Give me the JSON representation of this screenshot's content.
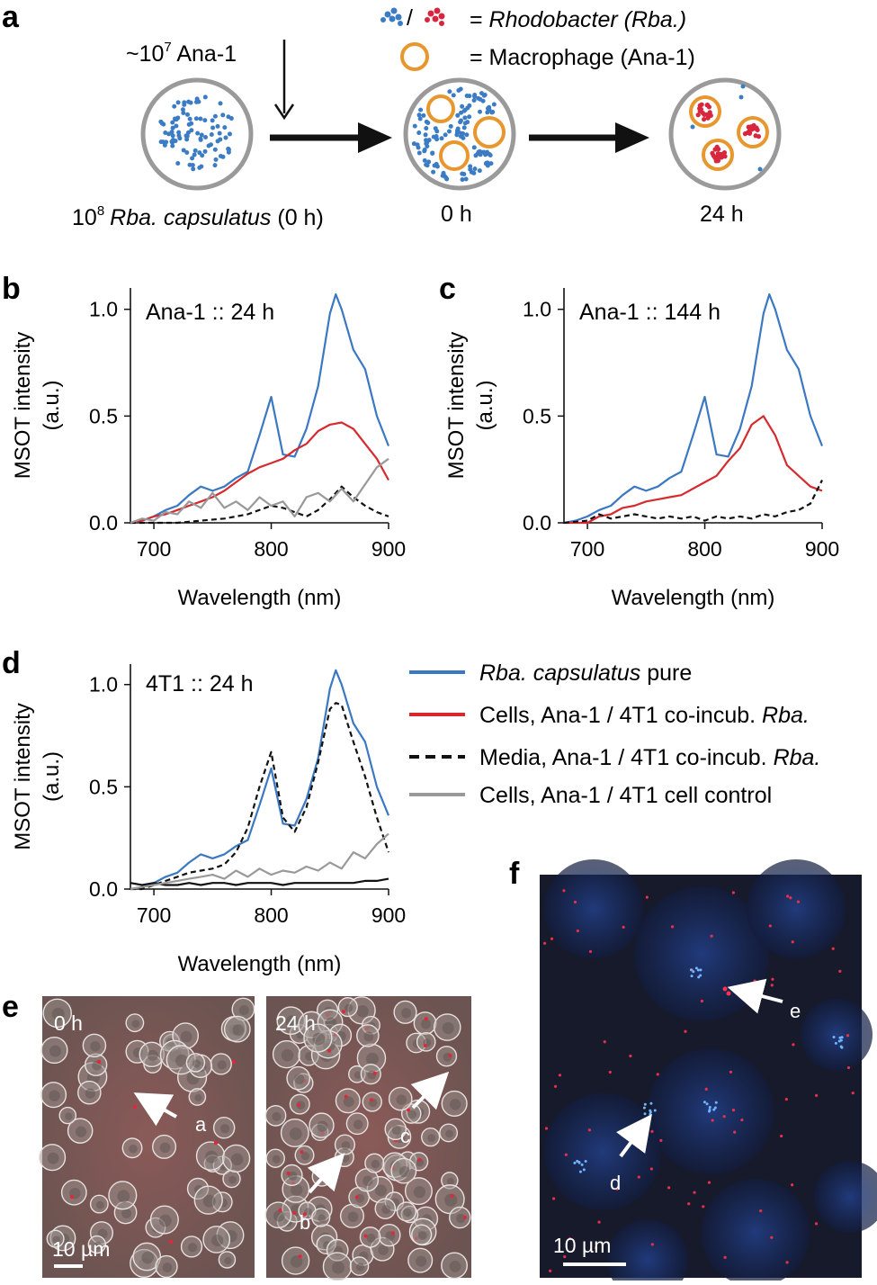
{
  "panels": {
    "a": "a",
    "b": "b",
    "c": "c",
    "d": "d",
    "e": "e",
    "f": "f"
  },
  "schematic": {
    "seed_label_prefix": "~10",
    "seed_label_exp": "7",
    "seed_label_suffix": " Ana-1",
    "dish1_label_prefix": "10",
    "dish1_label_exp": "8",
    "dish1_label_species": "Rba. capsulatus",
    "dish1_label_suffix": " (0 h)",
    "dish2_label": "0 h",
    "dish3_label": "24 h",
    "legend_bacteria_sep": "/",
    "legend_bacteria_eq": "= ",
    "legend_bacteria_name": "Rhodobacter (Rba.)",
    "legend_macrophage": "= Macrophage (Ana-1)",
    "colors": {
      "bacteria_blue": "#3b7cc4",
      "bacteria_red": "#d7263d",
      "macrophage": "#e8962e",
      "dish": "#9a9a9a"
    }
  },
  "legend": {
    "pure_species": "Rba. capsulatus",
    "pure_suffix": " pure",
    "cells_prefix": "Cells, Ana-1 / 4T1 co-incub. ",
    "cells_species": "Rba.",
    "media_prefix": "Media, Ana-1 / 4T1 co-incub. ",
    "media_species": "Rba.",
    "control": "Cells, Ana-1 / 4T1 cell control"
  },
  "chart_data": [
    {
      "type": "line",
      "panel": "b",
      "title": "Ana-1 :: 24 h",
      "xlabel": "Wavelength (nm)",
      "ylabel": [
        "MSOT intensity",
        "(a.u.)"
      ],
      "xlim": [
        680,
        900
      ],
      "ylim": [
        0,
        1.1
      ],
      "xticks": [
        "700",
        "800",
        "900"
      ],
      "yticks": [
        "0.0",
        "0.5",
        "1.0"
      ],
      "series": [
        {
          "name": "Rba. capsulatus pure",
          "color": "#3b78c2",
          "dash": false,
          "x": [
            680,
            690,
            700,
            710,
            720,
            730,
            740,
            750,
            760,
            770,
            780,
            790,
            800,
            810,
            820,
            830,
            840,
            850,
            855,
            860,
            870,
            880,
            890,
            900
          ],
          "y": [
            0.0,
            0.01,
            0.03,
            0.06,
            0.08,
            0.13,
            0.17,
            0.15,
            0.17,
            0.21,
            0.24,
            0.41,
            0.59,
            0.32,
            0.31,
            0.44,
            0.64,
            0.98,
            1.07,
            1.0,
            0.81,
            0.72,
            0.5,
            0.36
          ]
        },
        {
          "name": "Cells, Ana-1 / 4T1 co-incub. Rba.",
          "color": "#d62a2e",
          "dash": false,
          "x": [
            680,
            690,
            700,
            710,
            720,
            730,
            740,
            750,
            760,
            770,
            780,
            790,
            800,
            810,
            820,
            830,
            840,
            850,
            860,
            870,
            880,
            890,
            900
          ],
          "y": [
            0.0,
            0.01,
            0.03,
            0.04,
            0.06,
            0.08,
            0.1,
            0.12,
            0.15,
            0.19,
            0.23,
            0.26,
            0.28,
            0.3,
            0.34,
            0.37,
            0.43,
            0.46,
            0.47,
            0.44,
            0.37,
            0.3,
            0.2
          ]
        },
        {
          "name": "Media, Ana-1 / 4T1 co-incub. Rba.",
          "color": "#111111",
          "dash": true,
          "x": [
            680,
            700,
            720,
            740,
            760,
            780,
            800,
            810,
            820,
            830,
            840,
            850,
            860,
            870,
            880,
            890,
            900
          ],
          "y": [
            0.0,
            0.0,
            0.0,
            0.01,
            0.02,
            0.04,
            0.08,
            0.07,
            0.05,
            0.03,
            0.06,
            0.11,
            0.17,
            0.12,
            0.08,
            0.05,
            0.03
          ]
        },
        {
          "name": "Cells, Ana-1 / 4T1 cell control",
          "color": "#999999",
          "dash": false,
          "x": [
            680,
            690,
            700,
            710,
            720,
            730,
            740,
            750,
            760,
            770,
            780,
            790,
            800,
            810,
            820,
            830,
            840,
            850,
            860,
            870,
            880,
            890,
            900
          ],
          "y": [
            0.0,
            0.02,
            0.01,
            0.05,
            0.04,
            0.1,
            0.07,
            0.14,
            0.07,
            0.1,
            0.06,
            0.12,
            0.08,
            0.1,
            0.03,
            0.12,
            0.14,
            0.1,
            0.16,
            0.1,
            0.18,
            0.26,
            0.3
          ]
        }
      ]
    },
    {
      "type": "line",
      "panel": "c",
      "title": "Ana-1 :: 144 h",
      "xlabel": "Wavelength (nm)",
      "ylabel": [
        "MSOT intensity",
        "(a.u.)"
      ],
      "xlim": [
        680,
        900
      ],
      "ylim": [
        0,
        1.1
      ],
      "xticks": [
        "700",
        "800",
        "900"
      ],
      "yticks": [
        "0.0",
        "0.5",
        "1.0"
      ],
      "series": [
        {
          "name": "Rba. capsulatus pure",
          "color": "#3b78c2",
          "dash": false,
          "x": [
            680,
            690,
            700,
            710,
            720,
            730,
            740,
            750,
            760,
            770,
            780,
            790,
            800,
            810,
            820,
            830,
            840,
            850,
            855,
            860,
            870,
            880,
            890,
            900
          ],
          "y": [
            0.0,
            0.01,
            0.03,
            0.06,
            0.08,
            0.13,
            0.17,
            0.15,
            0.17,
            0.21,
            0.24,
            0.41,
            0.59,
            0.32,
            0.31,
            0.44,
            0.64,
            0.98,
            1.07,
            1.0,
            0.81,
            0.72,
            0.5,
            0.36
          ]
        },
        {
          "name": "Cells, Ana-1 / 4T1 co-incub. Rba.",
          "color": "#d62a2e",
          "dash": false,
          "x": [
            680,
            700,
            710,
            720,
            730,
            740,
            750,
            760,
            770,
            780,
            790,
            800,
            810,
            820,
            830,
            840,
            850,
            860,
            870,
            880,
            890,
            900
          ],
          "y": [
            0.0,
            0.0,
            0.03,
            0.04,
            0.07,
            0.08,
            0.1,
            0.11,
            0.12,
            0.13,
            0.16,
            0.19,
            0.22,
            0.29,
            0.35,
            0.46,
            0.5,
            0.41,
            0.27,
            0.22,
            0.17,
            0.15
          ]
        },
        {
          "name": "Media, Ana-1 / 4T1 co-incub. Rba.",
          "color": "#111111",
          "dash": true,
          "x": [
            680,
            700,
            710,
            720,
            730,
            740,
            750,
            760,
            770,
            780,
            790,
            800,
            810,
            820,
            830,
            840,
            850,
            860,
            870,
            880,
            890,
            900
          ],
          "y": [
            0.0,
            0.01,
            0.04,
            0.02,
            0.03,
            0.04,
            0.03,
            0.02,
            0.03,
            0.02,
            0.03,
            0.01,
            0.03,
            0.02,
            0.03,
            0.02,
            0.04,
            0.03,
            0.05,
            0.06,
            0.09,
            0.2
          ]
        }
      ]
    },
    {
      "type": "line",
      "panel": "d",
      "title": "4T1 :: 24 h",
      "xlabel": "Wavelength (nm)",
      "ylabel": [
        "MSOT intensity",
        "(a.u.)"
      ],
      "xlim": [
        680,
        900
      ],
      "ylim": [
        0,
        1.1
      ],
      "xticks": [
        "700",
        "800",
        "900"
      ],
      "yticks": [
        "0.0",
        "0.5",
        "1.0"
      ],
      "series": [
        {
          "name": "Rba. capsulatus pure",
          "color": "#3b78c2",
          "dash": false,
          "x": [
            680,
            690,
            700,
            710,
            720,
            730,
            740,
            750,
            760,
            770,
            780,
            790,
            800,
            810,
            820,
            830,
            840,
            850,
            855,
            860,
            870,
            880,
            890,
            900
          ],
          "y": [
            0.0,
            0.01,
            0.03,
            0.06,
            0.08,
            0.13,
            0.17,
            0.15,
            0.17,
            0.21,
            0.24,
            0.41,
            0.59,
            0.32,
            0.31,
            0.44,
            0.64,
            0.98,
            1.07,
            1.0,
            0.81,
            0.72,
            0.5,
            0.36
          ]
        },
        {
          "name": "Media, Ana-1 / 4T1 co-incub. Rba.",
          "color": "#111111",
          "dash": true,
          "x": [
            680,
            690,
            700,
            710,
            720,
            730,
            740,
            750,
            760,
            770,
            780,
            790,
            800,
            810,
            820,
            830,
            840,
            850,
            855,
            860,
            870,
            880,
            890,
            900
          ],
          "y": [
            0.0,
            0.0,
            0.02,
            0.04,
            0.06,
            0.08,
            0.09,
            0.1,
            0.12,
            0.18,
            0.3,
            0.5,
            0.67,
            0.35,
            0.28,
            0.4,
            0.62,
            0.88,
            0.91,
            0.9,
            0.72,
            0.55,
            0.35,
            0.18
          ]
        },
        {
          "name": "Cells, Ana-1 / 4T1 co-incub. Rba.",
          "color": "#111111",
          "dash": false,
          "x": [
            680,
            690,
            700,
            710,
            720,
            730,
            740,
            750,
            760,
            770,
            780,
            790,
            800,
            810,
            820,
            830,
            840,
            850,
            860,
            870,
            880,
            890,
            900
          ],
          "y": [
            0.03,
            0.02,
            0.03,
            0.02,
            0.02,
            0.03,
            0.02,
            0.03,
            0.03,
            0.02,
            0.03,
            0.03,
            0.03,
            0.02,
            0.03,
            0.03,
            0.03,
            0.03,
            0.03,
            0.03,
            0.04,
            0.04,
            0.05
          ]
        },
        {
          "name": "Cells, Ana-1 / 4T1 cell control",
          "color": "#999999",
          "dash": false,
          "x": [
            680,
            690,
            700,
            710,
            720,
            730,
            740,
            750,
            760,
            770,
            780,
            790,
            800,
            810,
            820,
            830,
            840,
            850,
            860,
            870,
            880,
            890,
            900
          ],
          "y": [
            0.0,
            0.01,
            0.02,
            0.03,
            0.04,
            0.05,
            0.06,
            0.07,
            0.05,
            0.09,
            0.06,
            0.1,
            0.07,
            0.09,
            0.08,
            0.11,
            0.09,
            0.13,
            0.1,
            0.18,
            0.15,
            0.22,
            0.27
          ]
        }
      ]
    }
  ],
  "micro_e": {
    "left_time": "0 h",
    "right_time": "24 h",
    "scale": "10 µm",
    "arrow_labels": [
      "a",
      "b",
      "c"
    ]
  },
  "micro_f": {
    "scale": "10 µm",
    "arrow_labels": [
      "e",
      "d"
    ]
  }
}
